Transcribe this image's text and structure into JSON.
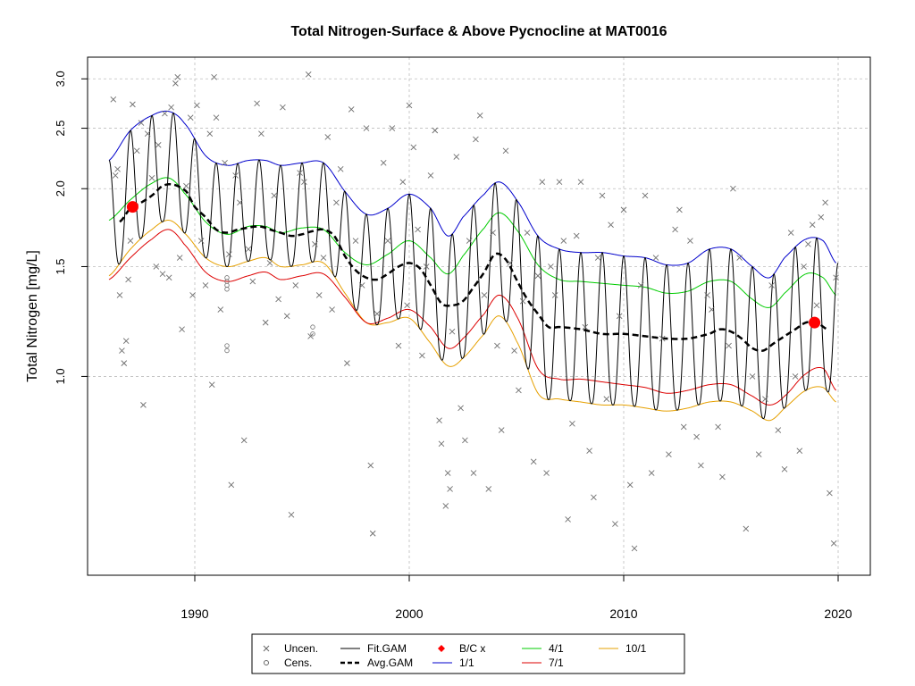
{
  "chart_data": {
    "type": "line",
    "title": "Total Nitrogen-Surface & Above Pycnocline at MAT0016",
    "xlabel": "",
    "ylabel": "Total Nitrogen [mg/L]",
    "xlim": [
      1985.0,
      2021.5
    ],
    "ylim": [
      0.48,
      3.25
    ],
    "y_scale": "log",
    "x_ticks": [
      1990,
      2000,
      2010,
      2020
    ],
    "y_ticks": [
      1.0,
      1.5,
      2.0,
      2.5,
      3.0
    ],
    "y_tick_labels": [
      "1.0",
      "1.5",
      "2.0",
      "2.5",
      "3.0"
    ],
    "grid": true,
    "legend_position": "bottom",
    "series": [
      {
        "name": "1/1",
        "color": "#0000cc",
        "x": [
          1986.0,
          1987.0,
          1988.0,
          1988.8,
          1989.5,
          1990.5,
          1991.5,
          1992.5,
          1993.3,
          1994.0,
          1995.0,
          1996.0,
          1997.0,
          1998.0,
          1999.0,
          2000.0,
          2001.0,
          2001.8,
          2002.5,
          2003.5,
          2004.2,
          2005.0,
          2006.0,
          2007.0,
          2008.0,
          2009.0,
          2010.0,
          2011.0,
          2012.0,
          2013.0,
          2014.0,
          2015.0,
          2016.0,
          2016.8,
          2017.5,
          2018.5,
          2019.3,
          2019.9
        ],
        "y": [
          2.22,
          2.48,
          2.62,
          2.66,
          2.55,
          2.26,
          2.18,
          2.22,
          2.22,
          2.18,
          2.2,
          2.2,
          1.98,
          1.82,
          1.86,
          1.96,
          1.86,
          1.68,
          1.8,
          1.96,
          2.05,
          1.92,
          1.68,
          1.6,
          1.58,
          1.58,
          1.56,
          1.55,
          1.51,
          1.52,
          1.6,
          1.6,
          1.5,
          1.44,
          1.55,
          1.66,
          1.65,
          1.52
        ]
      },
      {
        "name": "4/1",
        "color": "#00cc00",
        "x": [
          1986.0,
          1987.0,
          1988.0,
          1988.8,
          1989.5,
          1990.5,
          1991.5,
          1992.5,
          1993.3,
          1994.0,
          1995.0,
          1996.0,
          1997.0,
          1998.0,
          1999.0,
          2000.0,
          2001.0,
          2001.8,
          2002.5,
          2003.5,
          2004.2,
          2005.0,
          2006.0,
          2007.0,
          2008.0,
          2009.0,
          2010.0,
          2011.0,
          2012.0,
          2013.0,
          2014.0,
          2015.0,
          2016.0,
          2016.8,
          2017.5,
          2018.5,
          2019.3,
          2019.9
        ],
        "y": [
          1.78,
          1.92,
          2.04,
          2.08,
          1.97,
          1.77,
          1.69,
          1.74,
          1.74,
          1.7,
          1.73,
          1.72,
          1.58,
          1.51,
          1.57,
          1.65,
          1.55,
          1.46,
          1.56,
          1.73,
          1.83,
          1.72,
          1.51,
          1.43,
          1.42,
          1.41,
          1.4,
          1.39,
          1.36,
          1.37,
          1.42,
          1.42,
          1.33,
          1.29,
          1.36,
          1.46,
          1.44,
          1.35
        ]
      },
      {
        "name": "Avg.GAM",
        "color": "#000000",
        "dashed": true,
        "x": [
          1986.5,
          1987.0,
          1987.5,
          1988.0,
          1988.5,
          1989.0,
          1989.6,
          1990.0,
          1990.5,
          1991.0,
          1991.5,
          1992.0,
          1993.0,
          1993.5,
          1994.0,
          1994.5,
          1995.0,
          1995.5,
          1996.0,
          1996.5,
          1997.0,
          1997.5,
          1998.0,
          1998.5,
          1999.0,
          1999.5,
          2000.0,
          2000.5,
          2001.0,
          2001.5,
          2002.0,
          2002.5,
          2003.0,
          2003.5,
          2004.0,
          2004.5,
          2005.0,
          2005.5,
          2006.0,
          2006.5,
          2007.0,
          2008.0,
          2009.0,
          2010.0,
          2011.0,
          2012.0,
          2013.0,
          2014.0,
          2014.5,
          2015.0,
          2015.5,
          2016.0,
          2016.5,
          2017.0,
          2017.5,
          2018.0,
          2018.5,
          2019.0,
          2019.5
        ],
        "y": [
          1.77,
          1.86,
          1.9,
          1.95,
          2.02,
          2.03,
          1.98,
          1.87,
          1.8,
          1.72,
          1.7,
          1.72,
          1.74,
          1.72,
          1.7,
          1.68,
          1.69,
          1.71,
          1.72,
          1.68,
          1.56,
          1.48,
          1.44,
          1.43,
          1.46,
          1.5,
          1.52,
          1.49,
          1.4,
          1.31,
          1.3,
          1.32,
          1.39,
          1.47,
          1.57,
          1.54,
          1.43,
          1.33,
          1.26,
          1.2,
          1.2,
          1.19,
          1.17,
          1.17,
          1.16,
          1.15,
          1.15,
          1.17,
          1.19,
          1.18,
          1.15,
          1.11,
          1.1,
          1.13,
          1.16,
          1.19,
          1.22,
          1.22,
          1.19
        ]
      },
      {
        "name": "7/1",
        "color": "#dd0000",
        "x": [
          1986.0,
          1987.0,
          1988.0,
          1988.8,
          1989.5,
          1990.5,
          1991.5,
          1992.5,
          1993.3,
          1994.0,
          1995.0,
          1996.0,
          1997.0,
          1998.0,
          1999.0,
          2000.0,
          2001.0,
          2001.8,
          2002.5,
          2003.5,
          2004.2,
          2005.0,
          2006.0,
          2007.0,
          2008.0,
          2009.0,
          2010.0,
          2011.0,
          2012.0,
          2013.0,
          2014.0,
          2015.0,
          2016.0,
          2016.8,
          2017.5,
          2018.5,
          2019.3,
          2019.9
        ],
        "y": [
          1.43,
          1.55,
          1.66,
          1.72,
          1.63,
          1.47,
          1.42,
          1.45,
          1.47,
          1.43,
          1.45,
          1.46,
          1.34,
          1.22,
          1.24,
          1.28,
          1.2,
          1.11,
          1.15,
          1.26,
          1.35,
          1.25,
          1.03,
          0.99,
          0.99,
          0.98,
          0.97,
          0.96,
          0.94,
          0.95,
          0.97,
          0.97,
          0.93,
          0.9,
          0.93,
          1.01,
          1.03,
          0.95
        ]
      },
      {
        "name": "10/1",
        "color": "#e6a000",
        "x": [
          1986.0,
          1987.0,
          1988.0,
          1988.8,
          1989.5,
          1990.5,
          1991.5,
          1992.5,
          1993.3,
          1994.0,
          1995.0,
          1996.0,
          1997.0,
          1998.0,
          1999.0,
          2000.0,
          2001.0,
          2001.8,
          2002.5,
          2003.5,
          2004.2,
          2005.0,
          2006.0,
          2007.0,
          2008.0,
          2009.0,
          2010.0,
          2011.0,
          2012.0,
          2013.0,
          2014.0,
          2015.0,
          2016.0,
          2016.8,
          2017.5,
          2018.5,
          2019.3,
          2019.9
        ],
        "y": [
          1.45,
          1.6,
          1.72,
          1.78,
          1.7,
          1.55,
          1.5,
          1.53,
          1.55,
          1.5,
          1.51,
          1.52,
          1.36,
          1.22,
          1.22,
          1.24,
          1.13,
          1.04,
          1.07,
          1.17,
          1.25,
          1.14,
          0.94,
          0.92,
          0.91,
          0.9,
          0.9,
          0.89,
          0.88,
          0.89,
          0.91,
          0.91,
          0.88,
          0.85,
          0.89,
          0.95,
          0.96,
          0.91
        ]
      },
      {
        "name": "Fit.GAM",
        "color": "#000000",
        "generator": "seasonal",
        "x_start": 1986.0,
        "x_end": 2020.0,
        "comment": "seasonal fit oscillates between the 10/1 and 1/1 curves, peaking early each year"
      }
    ],
    "points": [
      {
        "name": "B/C x",
        "color": "#ff0000",
        "x": 1987.1,
        "y": 1.87
      },
      {
        "name": "B/C x",
        "color": "#ff0000",
        "x": 2018.9,
        "y": 1.22
      }
    ],
    "scatter": {
      "uncensored": [
        [
          1986.2,
          2.78
        ],
        [
          1986.3,
          2.1
        ],
        [
          1986.4,
          2.15
        ],
        [
          1986.5,
          1.35
        ],
        [
          1986.6,
          1.1
        ],
        [
          1986.7,
          1.05
        ],
        [
          1986.8,
          1.14
        ],
        [
          1986.9,
          1.43
        ],
        [
          1987.0,
          1.65
        ],
        [
          1987.1,
          2.73
        ],
        [
          1987.3,
          2.3
        ],
        [
          1987.5,
          2.55
        ],
        [
          1987.6,
          0.9
        ],
        [
          1987.8,
          2.45
        ],
        [
          1988.0,
          2.08
        ],
        [
          1988.2,
          1.5
        ],
        [
          1988.3,
          2.35
        ],
        [
          1988.5,
          1.46
        ],
        [
          1988.6,
          2.64
        ],
        [
          1988.8,
          1.44
        ],
        [
          1988.9,
          2.7
        ],
        [
          1989.1,
          2.95
        ],
        [
          1989.2,
          3.02
        ],
        [
          1989.3,
          1.55
        ],
        [
          1989.4,
          1.19
        ],
        [
          1989.6,
          2.02
        ],
        [
          1989.8,
          2.6
        ],
        [
          1989.9,
          1.35
        ],
        [
          1990.1,
          2.72
        ],
        [
          1990.3,
          1.65
        ],
        [
          1990.5,
          1.4
        ],
        [
          1990.7,
          2.45
        ],
        [
          1990.8,
          0.97
        ],
        [
          1990.9,
          3.02
        ],
        [
          1991.0,
          2.6
        ],
        [
          1991.2,
          1.28
        ],
        [
          1991.4,
          2.2
        ],
        [
          1991.6,
          1.57
        ],
        [
          1991.7,
          0.67
        ],
        [
          1991.9,
          2.1
        ],
        [
          1992.1,
          1.9
        ],
        [
          1992.3,
          0.79
        ],
        [
          1992.5,
          1.6
        ],
        [
          1992.7,
          1.42
        ],
        [
          1992.9,
          2.74
        ],
        [
          1993.1,
          2.45
        ],
        [
          1993.3,
          1.22
        ],
        [
          1993.5,
          1.52
        ],
        [
          1993.7,
          1.95
        ],
        [
          1993.9,
          1.33
        ],
        [
          1994.1,
          2.7
        ],
        [
          1994.3,
          1.25
        ],
        [
          1994.5,
          0.6
        ],
        [
          1994.7,
          1.4
        ],
        [
          1994.9,
          2.12
        ],
        [
          1995.1,
          2.05
        ],
        [
          1995.3,
          3.05
        ],
        [
          1995.4,
          1.16
        ],
        [
          1995.6,
          1.63
        ],
        [
          1995.8,
          1.35
        ],
        [
          1996.0,
          1.55
        ],
        [
          1996.2,
          2.42
        ],
        [
          1996.4,
          1.28
        ],
        [
          1996.6,
          1.9
        ],
        [
          1996.8,
          2.15
        ],
        [
          1997.1,
          1.05
        ],
        [
          1997.3,
          2.68
        ],
        [
          1997.5,
          1.65
        ],
        [
          1997.8,
          1.4
        ],
        [
          1998.0,
          2.5
        ],
        [
          1998.2,
          0.72
        ],
        [
          1998.3,
          0.56
        ],
        [
          1998.5,
          1.26
        ],
        [
          1998.8,
          2.2
        ],
        [
          1999.0,
          1.65
        ],
        [
          1999.2,
          2.5
        ],
        [
          1999.5,
          1.12
        ],
        [
          1999.7,
          2.05
        ],
        [
          1999.9,
          1.3
        ],
        [
          2000.0,
          2.72
        ],
        [
          2000.2,
          2.33
        ],
        [
          2000.4,
          1.72
        ],
        [
          2000.6,
          1.08
        ],
        [
          2000.8,
          1.5
        ],
        [
          2001.0,
          2.1
        ],
        [
          2001.2,
          2.48
        ],
        [
          2001.4,
          0.85
        ],
        [
          2001.5,
          0.78
        ],
        [
          2001.7,
          0.62
        ],
        [
          2001.8,
          0.7
        ],
        [
          2001.9,
          0.66
        ],
        [
          2002.0,
          1.18
        ],
        [
          2002.2,
          2.25
        ],
        [
          2002.4,
          0.89
        ],
        [
          2002.6,
          0.79
        ],
        [
          2002.8,
          1.65
        ],
        [
          2003.0,
          0.7
        ],
        [
          2003.1,
          2.4
        ],
        [
          2003.3,
          2.62
        ],
        [
          2003.5,
          1.35
        ],
        [
          2003.7,
          0.66
        ],
        [
          2003.9,
          1.7
        ],
        [
          2004.1,
          1.12
        ],
        [
          2004.3,
          0.82
        ],
        [
          2004.5,
          2.3
        ],
        [
          2004.7,
          1.52
        ],
        [
          2004.9,
          1.1
        ],
        [
          2005.1,
          0.95
        ],
        [
          2005.3,
          1.32
        ],
        [
          2005.5,
          1.7
        ],
        [
          2005.8,
          0.73
        ],
        [
          2006.0,
          1.45
        ],
        [
          2006.2,
          2.05
        ],
        [
          2006.4,
          0.7
        ],
        [
          2006.6,
          1.5
        ],
        [
          2006.8,
          1.35
        ],
        [
          2007.0,
          2.05
        ],
        [
          2007.2,
          1.65
        ],
        [
          2007.4,
          0.59
        ],
        [
          2007.6,
          0.84
        ],
        [
          2007.8,
          1.68
        ],
        [
          2008.0,
          2.05
        ],
        [
          2008.2,
          1.2
        ],
        [
          2008.4,
          0.76
        ],
        [
          2008.6,
          0.64
        ],
        [
          2008.8,
          1.55
        ],
        [
          2009.0,
          1.95
        ],
        [
          2009.2,
          0.92
        ],
        [
          2009.4,
          1.75
        ],
        [
          2009.6,
          0.58
        ],
        [
          2009.8,
          1.25
        ],
        [
          2010.0,
          1.85
        ],
        [
          2010.3,
          0.67
        ],
        [
          2010.5,
          0.53
        ],
        [
          2010.8,
          1.4
        ],
        [
          2011.0,
          1.95
        ],
        [
          2011.3,
          0.7
        ],
        [
          2011.5,
          1.55
        ],
        [
          2011.8,
          1.15
        ],
        [
          2012.1,
          0.75
        ],
        [
          2012.4,
          1.72
        ],
        [
          2012.6,
          1.85
        ],
        [
          2012.8,
          0.83
        ],
        [
          2013.1,
          1.65
        ],
        [
          2013.4,
          0.8
        ],
        [
          2013.6,
          0.72
        ],
        [
          2013.9,
          1.35
        ],
        [
          2014.1,
          1.28
        ],
        [
          2014.4,
          0.83
        ],
        [
          2014.6,
          0.69
        ],
        [
          2014.9,
          1.12
        ],
        [
          2015.1,
          2.0
        ],
        [
          2015.4,
          1.55
        ],
        [
          2015.7,
          0.57
        ],
        [
          2016.0,
          1.0
        ],
        [
          2016.3,
          0.75
        ],
        [
          2016.6,
          0.92
        ],
        [
          2016.9,
          1.4
        ],
        [
          2017.2,
          0.82
        ],
        [
          2017.5,
          0.71
        ],
        [
          2017.8,
          1.7
        ],
        [
          2018.0,
          1.0
        ],
        [
          2018.2,
          0.76
        ],
        [
          2018.4,
          1.5
        ],
        [
          2018.6,
          1.63
        ],
        [
          2018.8,
          1.75
        ],
        [
          2019.0,
          1.3
        ],
        [
          2019.2,
          1.8
        ],
        [
          2019.4,
          1.9
        ],
        [
          2019.6,
          0.65
        ],
        [
          2019.8,
          0.54
        ],
        [
          2019.9,
          1.44
        ]
      ],
      "censored": [
        [
          1991.5,
          1.38
        ],
        [
          1991.5,
          1.4
        ],
        [
          1991.5,
          1.42
        ],
        [
          1991.5,
          1.44
        ],
        [
          1991.5,
          1.1
        ],
        [
          1991.5,
          1.12
        ],
        [
          1995.5,
          1.17
        ],
        [
          1995.5,
          1.2
        ]
      ]
    },
    "legend": [
      {
        "label": "Uncen.",
        "symbol": "cross",
        "color": "#666666"
      },
      {
        "label": "Fit.GAM",
        "symbol": "line",
        "color": "#000000"
      },
      {
        "label": "B/C x",
        "symbol": "diamond",
        "color": "#ff0000"
      },
      {
        "label": "4/1",
        "symbol": "line",
        "color": "#00cc00"
      },
      {
        "label": "10/1",
        "symbol": "line",
        "color": "#e6a000"
      },
      {
        "label": "Cens.",
        "symbol": "circle",
        "color": "#666666"
      },
      {
        "label": "Avg.GAM",
        "symbol": "dashed",
        "color": "#000000"
      },
      {
        "label": "1/1",
        "symbol": "line",
        "color": "#0000cc"
      },
      {
        "label": "7/1",
        "symbol": "line",
        "color": "#dd0000"
      }
    ]
  }
}
